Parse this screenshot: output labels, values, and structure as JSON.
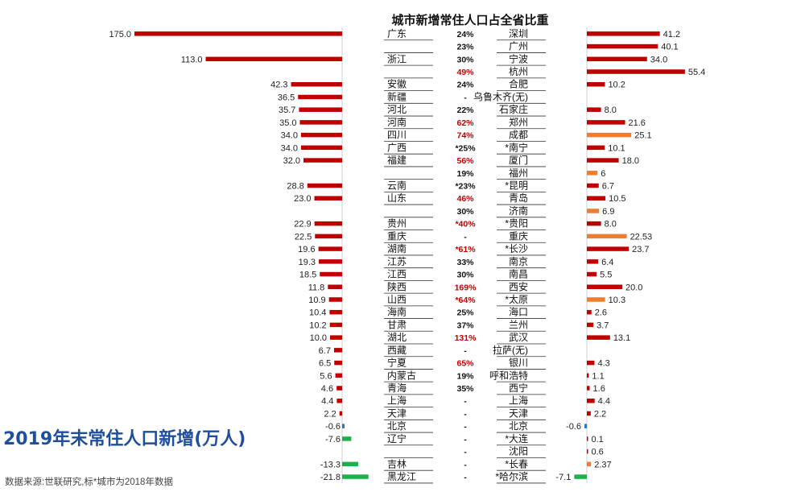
{
  "big_title": "2019年末常住人口新增(万人)",
  "source_note": "数据来源:世联研究,标*城市为2018年数据",
  "colors": {
    "red": "#c00000",
    "orange": "#ed7d31",
    "green": "#19b24a",
    "blue": "#2e75b6"
  },
  "chart_data": {
    "type": "bar",
    "title": "城市新增常住人口占全省比重",
    "rows": [
      {
        "province": "广东",
        "prov_value": 175.0,
        "pct": "24%",
        "pct_highlight": false,
        "city": "深圳",
        "city_value": 41.2,
        "city_color": "red"
      },
      {
        "province": "",
        "prov_value": null,
        "pct": "23%",
        "pct_highlight": false,
        "city": "广州",
        "city_value": 40.1,
        "city_color": "red"
      },
      {
        "province": "浙江",
        "prov_value": 113.0,
        "pct": "30%",
        "pct_highlight": false,
        "city": "宁波",
        "city_value": 34.0,
        "city_color": "red"
      },
      {
        "province": "",
        "prov_value": null,
        "pct": "49%",
        "pct_highlight": true,
        "city": "杭州",
        "city_value": 55.4,
        "city_color": "red"
      },
      {
        "province": "安徽",
        "prov_value": 42.3,
        "pct": "24%",
        "pct_highlight": false,
        "city": "合肥",
        "city_value": 10.2,
        "city_color": "red"
      },
      {
        "province": "新疆",
        "prov_value": 36.5,
        "pct": "-",
        "pct_highlight": false,
        "city": "乌鲁木齐(无)",
        "city_value": null,
        "city_color": "red"
      },
      {
        "province": "河北",
        "prov_value": 35.7,
        "pct": "22%",
        "pct_highlight": false,
        "city": "石家庄",
        "city_value": 8.0,
        "city_color": "red"
      },
      {
        "province": "河南",
        "prov_value": 35.0,
        "pct": "62%",
        "pct_highlight": true,
        "city": "郑州",
        "city_value": 21.6,
        "city_color": "red"
      },
      {
        "province": "四川",
        "prov_value": 34.0,
        "pct": "74%",
        "pct_highlight": true,
        "city": "成都",
        "city_value": 25.1,
        "city_color": "orange"
      },
      {
        "province": "广西",
        "prov_value": 34.0,
        "pct": "*25%",
        "pct_highlight": false,
        "city": "*南宁",
        "city_value": 10.1,
        "city_color": "red"
      },
      {
        "province": "福建",
        "prov_value": 32.0,
        "pct": "56%",
        "pct_highlight": true,
        "city": "厦门",
        "city_value": 18.0,
        "city_color": "red"
      },
      {
        "province": "",
        "prov_value": null,
        "pct": "19%",
        "pct_highlight": false,
        "city": "福州",
        "city_value": 6,
        "city_color": "orange"
      },
      {
        "province": "云南",
        "prov_value": 28.8,
        "pct": "*23%",
        "pct_highlight": false,
        "city": "*昆明",
        "city_value": 6.7,
        "city_color": "red"
      },
      {
        "province": "山东",
        "prov_value": 23.0,
        "pct": "46%",
        "pct_highlight": true,
        "city": "青岛",
        "city_value": 10.5,
        "city_color": "red"
      },
      {
        "province": "",
        "prov_value": null,
        "pct": "30%",
        "pct_highlight": false,
        "city": "济南",
        "city_value": 6.9,
        "city_color": "orange"
      },
      {
        "province": "贵州",
        "prov_value": 22.9,
        "pct": "*40%",
        "pct_highlight": true,
        "city": "*贵阳",
        "city_value": 8.0,
        "city_color": "red"
      },
      {
        "province": "重庆",
        "prov_value": 22.5,
        "pct": "-",
        "pct_highlight": false,
        "city": "重庆",
        "city_value": 22.53,
        "city_color": "orange"
      },
      {
        "province": "湖南",
        "prov_value": 19.6,
        "pct": "*61%",
        "pct_highlight": true,
        "city": "*长沙",
        "city_value": 23.7,
        "city_color": "red"
      },
      {
        "province": "江苏",
        "prov_value": 19.3,
        "pct": "33%",
        "pct_highlight": false,
        "city": "南京",
        "city_value": 6.4,
        "city_color": "red"
      },
      {
        "province": "江西",
        "prov_value": 18.5,
        "pct": "30%",
        "pct_highlight": false,
        "city": "南昌",
        "city_value": 5.5,
        "city_color": "red"
      },
      {
        "province": "陕西",
        "prov_value": 11.8,
        "pct": "169%",
        "pct_highlight": true,
        "city": "西安",
        "city_value": 20.0,
        "city_color": "red"
      },
      {
        "province": "山西",
        "prov_value": 10.9,
        "pct": "*64%",
        "pct_highlight": true,
        "city": "*太原",
        "city_value": 10.3,
        "city_color": "orange"
      },
      {
        "province": "海南",
        "prov_value": 10.4,
        "pct": "25%",
        "pct_highlight": false,
        "city": "海口",
        "city_value": 2.6,
        "city_color": "red"
      },
      {
        "province": "甘肃",
        "prov_value": 10.2,
        "pct": "37%",
        "pct_highlight": false,
        "city": "兰州",
        "city_value": 3.7,
        "city_color": "red"
      },
      {
        "province": "湖北",
        "prov_value": 10.0,
        "pct": "131%",
        "pct_highlight": true,
        "city": "武汉",
        "city_value": 13.1,
        "city_color": "red"
      },
      {
        "province": "西藏",
        "prov_value": 6.7,
        "pct": "-",
        "pct_highlight": false,
        "city": "拉萨(无)",
        "city_value": null,
        "city_color": "red"
      },
      {
        "province": "宁夏",
        "prov_value": 6.5,
        "pct": "65%",
        "pct_highlight": true,
        "city": "银川",
        "city_value": 4.3,
        "city_color": "red"
      },
      {
        "province": "内蒙古",
        "prov_value": 5.6,
        "pct": "19%",
        "pct_highlight": false,
        "city": "呼和浩特",
        "city_value": 1.1,
        "city_color": "red"
      },
      {
        "province": "青海",
        "prov_value": 4.6,
        "pct": "35%",
        "pct_highlight": false,
        "city": "西宁",
        "city_value": 1.6,
        "city_color": "red"
      },
      {
        "province": "上海",
        "prov_value": 4.4,
        "pct": "-",
        "pct_highlight": false,
        "city": "上海",
        "city_value": 4.4,
        "city_color": "red"
      },
      {
        "province": "天津",
        "prov_value": 2.2,
        "pct": "-",
        "pct_highlight": false,
        "city": "天津",
        "city_value": 2.2,
        "city_color": "red"
      },
      {
        "province": "北京",
        "prov_value": -0.6,
        "pct": "-",
        "pct_highlight": false,
        "city": "北京",
        "city_value": -0.6,
        "city_color": "blue"
      },
      {
        "province": "辽宁",
        "prov_value": -7.6,
        "pct": "-",
        "pct_highlight": false,
        "city": "*大连",
        "city_value": 0.1,
        "city_color": "red"
      },
      {
        "province": "",
        "prov_value": null,
        "pct": "-",
        "pct_highlight": false,
        "city": "沈阳",
        "city_value": 0.6,
        "city_color": "red"
      },
      {
        "province": "吉林",
        "prov_value": -13.3,
        "pct": "-",
        "pct_highlight": false,
        "city": "*长春",
        "city_value": 2.37,
        "city_color": "orange"
      },
      {
        "province": "黑龙江",
        "prov_value": -21.8,
        "pct": "-",
        "pct_highlight": false,
        "city": "*哈尔滨",
        "city_value": -7.1,
        "city_color": "green"
      }
    ],
    "prov_value_labels": [
      "175.0",
      "",
      "113.0",
      "",
      "42.3",
      "36.5",
      "35.7",
      "35.0",
      "34.0",
      "34.0",
      "32.0",
      "",
      "28.8",
      "23.0",
      "",
      "22.9",
      "22.5",
      "19.6",
      "19.3",
      "18.5",
      "11.8",
      "10.9",
      "10.4",
      "10.2",
      "10.0",
      "6.7",
      "6.5",
      "5.6",
      "4.6",
      "4.4",
      "2.2",
      "-0.6",
      "-7.6",
      "",
      "-13.3",
      "-21.8"
    ],
    "city_value_labels": [
      "41.2",
      "40.1",
      "34.0",
      "55.4",
      "10.2",
      "",
      "8.0",
      "21.6",
      "25.1",
      "10.1",
      "18.0",
      "6",
      "6.7",
      "10.5",
      "6.9",
      "8.0",
      "22.53",
      "23.7",
      "6.4",
      "5.5",
      "20.0",
      "10.3",
      "2.6",
      "3.7",
      "13.1",
      "",
      "4.3",
      "1.1",
      "1.6",
      "4.4",
      "2.2",
      "-0.6",
      "0.1",
      "0.6",
      "2.37",
      "-7.1"
    ]
  }
}
